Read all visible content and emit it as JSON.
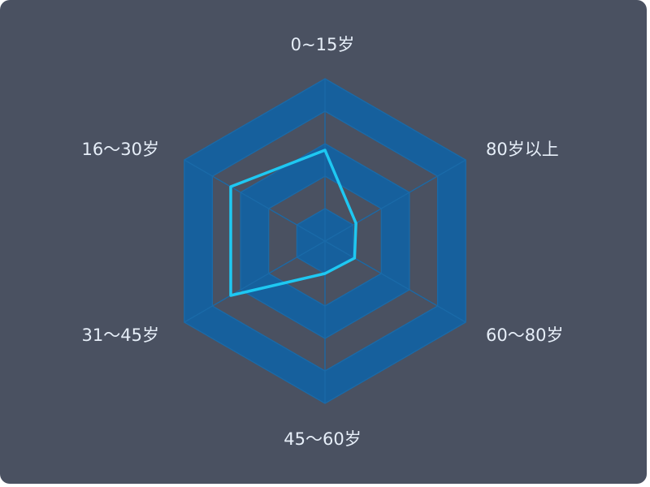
{
  "chart_data": {
    "type": "radar",
    "title": "",
    "indicators": [
      "0~15岁",
      "80岁以上",
      "60～80岁",
      "45～60岁",
      "31～45岁",
      "16～30岁"
    ],
    "max": 100,
    "split_number": 5,
    "split_area_bands": true,
    "series": [
      {
        "name": "",
        "values": [
          56,
          22,
          21,
          20,
          67,
          67
        ]
      }
    ],
    "colors": {
      "panel_background": "#4a5161",
      "grid_line": "#1a6aa8",
      "band_fill": "#16609d",
      "series_line": "#1ec8f2",
      "label_text": "#e6eef8"
    }
  }
}
